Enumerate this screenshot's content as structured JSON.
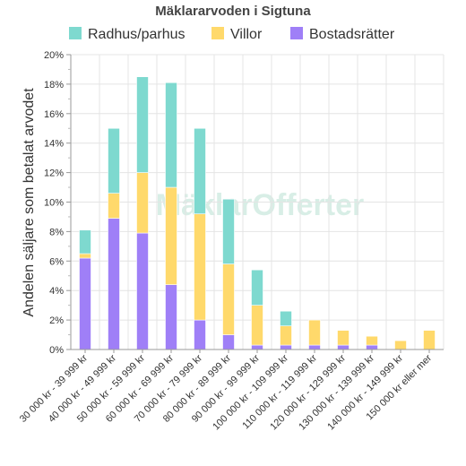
{
  "chart_data": {
    "type": "bar",
    "stacked": true,
    "title": "Mäklararvoden i Sigtuna",
    "ylabel": "Andelen säljare som betalat arvodet",
    "xlabel": "",
    "ylim": [
      0,
      20
    ],
    "yticks": [
      0,
      2,
      4,
      6,
      8,
      10,
      12,
      14,
      16,
      18,
      20
    ],
    "ytick_suffix": "%",
    "grid": true,
    "legend_position": "top",
    "categories": [
      "30 000 kr - 39 999 kr",
      "40 000 kr - 49 999 kr",
      "50 000 kr - 59 999 kr",
      "60 000 kr - 69 999 kr",
      "70 000 kr - 79 999 kr",
      "80 000 kr - 89 999 kr",
      "90 000 kr - 99 999 kr",
      "100 000 kr - 109 999 kr",
      "110 000 kr - 119 999 kr",
      "120 000 kr - 129 999 kr",
      "130 000 kr - 139 999 kr",
      "140 000 kr - 149 999 kr",
      "150 000 kr eller mer"
    ],
    "series": [
      {
        "name": "Bostadsrätter",
        "color": "#9f7ff7",
        "values": [
          6.2,
          8.9,
          7.9,
          4.4,
          2.0,
          1.0,
          0.3,
          0.3,
          0.3,
          0.3,
          0.3,
          0.0,
          0.0
        ]
      },
      {
        "name": "Villor",
        "color": "#ffd96b",
        "values": [
          0.3,
          1.7,
          4.1,
          6.6,
          7.2,
          4.8,
          2.7,
          1.3,
          1.7,
          1.0,
          0.6,
          0.6,
          1.3
        ]
      },
      {
        "name": "Radhus/parhus",
        "color": "#7ed9cf",
        "values": [
          1.6,
          4.4,
          6.5,
          7.1,
          5.8,
          4.4,
          2.4,
          1.0,
          0.0,
          0.0,
          0.0,
          0.0,
          0.0
        ]
      }
    ],
    "legend_order": [
      "Radhus/parhus",
      "Villor",
      "Bostadsrätter"
    ],
    "watermark": "MäklarOfferter"
  }
}
